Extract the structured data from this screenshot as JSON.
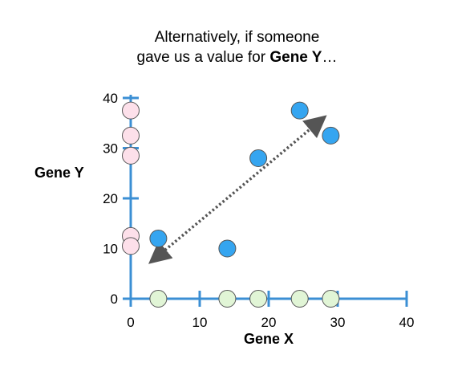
{
  "title": {
    "line1": "Alternatively, if someone",
    "line2_prefix": "gave us a value for ",
    "line2_bold": "Gene Y",
    "line2_suffix": "…"
  },
  "chart_data": {
    "type": "scatter",
    "xlabel": "Gene X",
    "ylabel": "Gene Y",
    "xlim": [
      0,
      40
    ],
    "ylim": [
      0,
      40
    ],
    "xticks": [
      0,
      10,
      20,
      30,
      40
    ],
    "yticks": [
      0,
      10,
      20,
      30,
      40
    ],
    "grid": false,
    "series": [
      {
        "role": "data",
        "color": "#35a5f0",
        "points": [
          {
            "x": 4,
            "y": 12
          },
          {
            "x": 14,
            "y": 10
          },
          {
            "x": 18.5,
            "y": 28
          },
          {
            "x": 24.5,
            "y": 37.5
          },
          {
            "x": 29,
            "y": 32.5
          }
        ]
      },
      {
        "role": "projection-on-y-axis",
        "color": "#fde0ea",
        "points": [
          {
            "x": 0,
            "y": 37.5
          },
          {
            "x": 0,
            "y": 32.5
          },
          {
            "x": 0,
            "y": 28.5
          },
          {
            "x": 0,
            "y": 12.5
          },
          {
            "x": 0,
            "y": 10.5
          }
        ]
      },
      {
        "role": "projection-on-x-axis",
        "color": "#e1f5d6",
        "points": [
          {
            "x": 4,
            "y": 0
          },
          {
            "x": 14,
            "y": 0
          },
          {
            "x": 18.5,
            "y": 0
          },
          {
            "x": 24.5,
            "y": 0
          },
          {
            "x": 29,
            "y": 0
          }
        ]
      }
    ],
    "annotation": {
      "type": "double-arrow",
      "style": "dotted",
      "color": "#555555",
      "from": {
        "x": 3.5,
        "y": 8
      },
      "to": {
        "x": 27.5,
        "y": 35.5
      }
    }
  }
}
